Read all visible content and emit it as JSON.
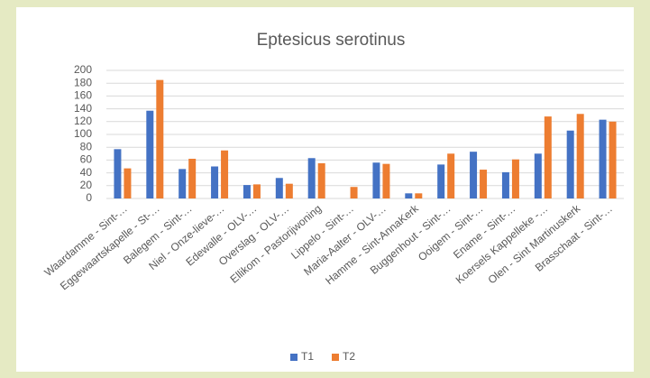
{
  "chart_data": {
    "type": "bar",
    "title": "Eptesicus serotinus",
    "categories": [
      "Waardamme - Sint-…",
      "Eggewaartskapelle - St-…",
      "Balegem - Sint-…",
      "Niel - Onze-lieve-…",
      "Edewalle - OLV-…",
      "Overslag - OLV-…",
      "Ellikom - Pastorijwoning",
      "Lippelo - Sint-…",
      "Maria-Aalter - OLV-…",
      "Hamme - Sint-AnnaKerk",
      "Buggenhout - Sint-…",
      "Ooigem - Sint-…",
      "Ename - Sint-…",
      "Koersels Kappelleke -…",
      "Olen - Sint Martinuskerk",
      "Brasschaat - Sint-…"
    ],
    "series": [
      {
        "name": "T1",
        "color": "#4472c4",
        "values": [
          77,
          137,
          46,
          50,
          21,
          32,
          63,
          null,
          56,
          8,
          53,
          73,
          41,
          70,
          106,
          123
        ]
      },
      {
        "name": "T2",
        "color": "#ed7d31",
        "values": [
          47,
          185,
          62,
          75,
          22,
          23,
          55,
          18,
          54,
          8,
          70,
          45,
          61,
          128,
          132,
          120
        ]
      }
    ],
    "ylim": [
      0,
      200
    ],
    "yticks": [
      0,
      20,
      40,
      60,
      80,
      100,
      120,
      140,
      160,
      180,
      200
    ],
    "grid": true,
    "legend": "bottom"
  }
}
